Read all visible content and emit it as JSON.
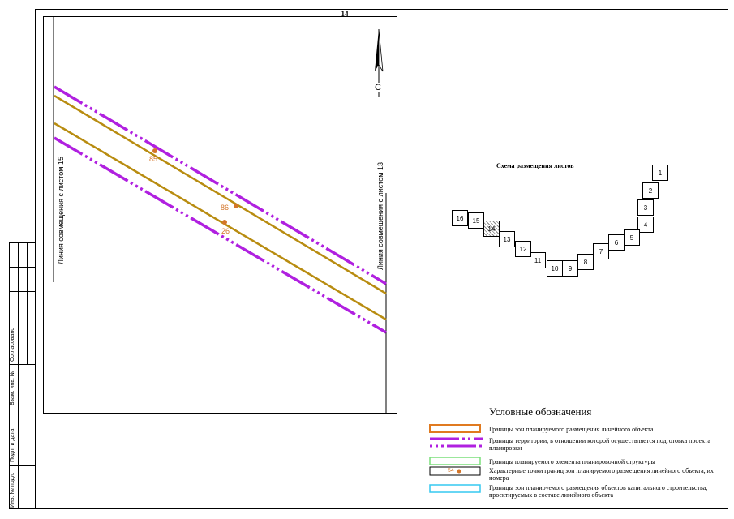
{
  "sheet": {
    "number": "14"
  },
  "stamp": {
    "fields": [
      "Согласовано",
      "Взам. инв. №",
      "Подп. и дата",
      "Инв. № подл."
    ]
  },
  "map": {
    "north_arrow_label": "С",
    "combine_left": "Линия совмещения с листом 15",
    "combine_right": "Линия совмещения с листом 13",
    "points": [
      "85",
      "86",
      "26"
    ]
  },
  "scheme": {
    "title": "Схема размещения листов",
    "tiles": [
      "1",
      "2",
      "3",
      "4",
      "5",
      "6",
      "7",
      "8",
      "9",
      "10",
      "11",
      "12",
      "13",
      "14",
      "15",
      "16"
    ],
    "current": "14"
  },
  "legend": {
    "title": "Условные обозначения",
    "items": [
      {
        "text": "Границы зон планируемого размещения линейного объекта",
        "color": "#e07a20"
      },
      {
        "text": "Границы территории, в отношении которой осуществляется подготовка проекта планировки",
        "color": "#b020e0"
      },
      {
        "text": "Границы планируемого элемента планировочной структуры",
        "color": "#7adf7a"
      },
      {
        "text": "Характерные точки границ зон планируемого размещения линейного объекта, их номера",
        "color": "#d4762a",
        "sample": "54"
      },
      {
        "text": "Границы зон планируемого размещения объектов капитального строительства, проектируемых в составе линейного объекта",
        "color": "#35c8f0"
      }
    ]
  }
}
